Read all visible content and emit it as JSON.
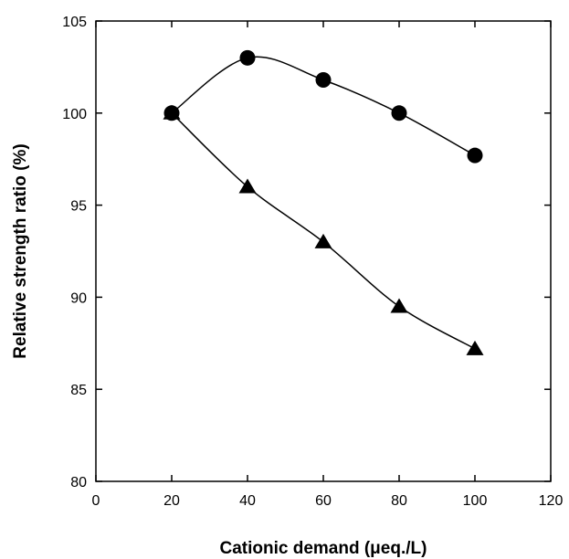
{
  "chart_data": {
    "type": "line",
    "title": "",
    "xlabel": "Cationic demand (μeq./L)",
    "ylabel": "Relative strength ratio (%)",
    "xlim": [
      0,
      120
    ],
    "ylim": [
      80,
      105
    ],
    "xticks": [
      0,
      20,
      40,
      60,
      80,
      100,
      120
    ],
    "yticks": [
      80,
      85,
      90,
      95,
      100,
      105
    ],
    "grid": false,
    "legend": "none",
    "series": [
      {
        "marker": "circle",
        "color": "#000000",
        "x": [
          20,
          40,
          60,
          80,
          100
        ],
        "y": [
          100,
          103,
          101.8,
          100,
          97.7
        ]
      },
      {
        "marker": "triangle",
        "color": "#000000",
        "x": [
          20,
          40,
          60,
          80,
          100
        ],
        "y": [
          100,
          96,
          93,
          89.5,
          87.2
        ]
      }
    ]
  }
}
